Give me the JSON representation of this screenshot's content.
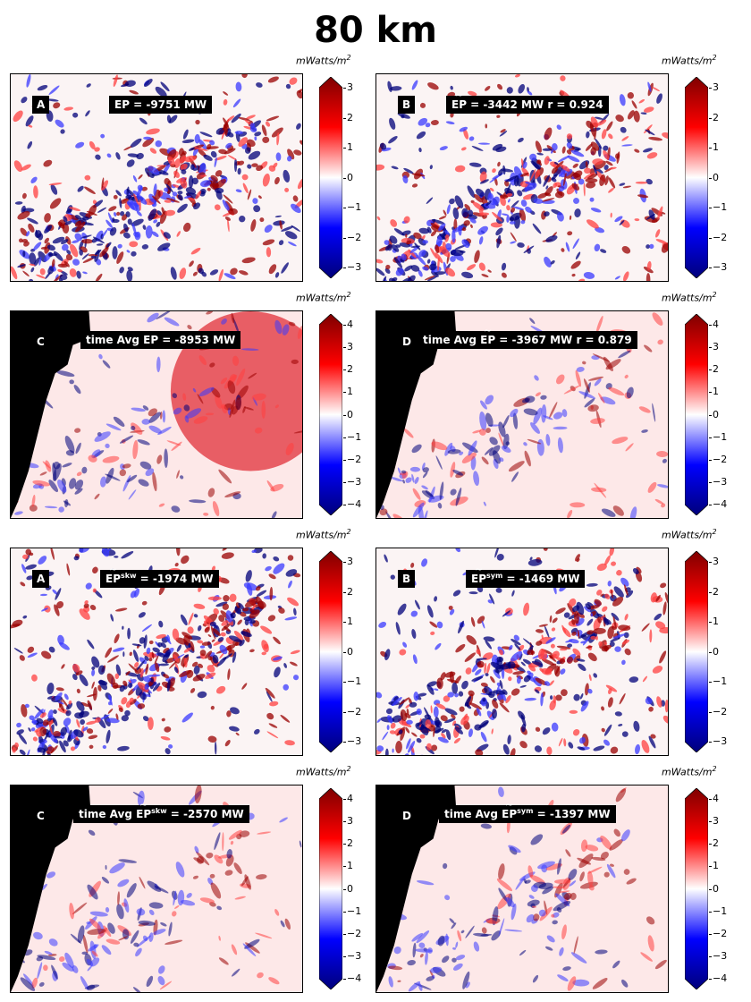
{
  "title": "80 km",
  "colorbar_unit": "mWatts/m",
  "colorbar_unit_sup": "2",
  "colors": {
    "negative": "#00007a",
    "zero": "#ffffff",
    "positive": "#7f0000",
    "land": "#000000"
  },
  "chart_data": [
    {
      "type": "heatmap",
      "panel": "A",
      "label": "EP = -9751 MW",
      "stat_parts": [
        "EP = -9751 MW"
      ],
      "colorbar_ticks": [
        3,
        2,
        1,
        0,
        -1,
        -2,
        -3
      ],
      "vmin": -3,
      "vmax": 3,
      "has_land": false
    },
    {
      "type": "heatmap",
      "panel": "B",
      "label": "EP = -3442 MW r = 0.924",
      "stat_parts": [
        "EP",
        " = -3442 MW r = 0.924"
      ],
      "tilde": true,
      "colorbar_ticks": [
        3,
        2,
        1,
        0,
        -1,
        -2,
        -3
      ],
      "vmin": -3,
      "vmax": 3,
      "has_land": false
    },
    {
      "type": "heatmap",
      "panel": "C",
      "label": "time Avg EP = -8953 MW",
      "stat_parts": [
        "time Avg EP = -8953 MW"
      ],
      "colorbar_ticks": [
        4,
        3,
        2,
        1,
        0,
        -1,
        -2,
        -3,
        -4
      ],
      "vmin": -4,
      "vmax": 4,
      "has_land": true
    },
    {
      "type": "heatmap",
      "panel": "D",
      "label": "time Avg EP = -3967 MW r = 0.879",
      "stat_parts": [
        "time Avg ",
        "EP",
        " = -3967 MW r = 0.879"
      ],
      "tilde": true,
      "colorbar_ticks": [
        4,
        3,
        2,
        1,
        0,
        -1,
        -2,
        -3,
        -4
      ],
      "vmin": -4,
      "vmax": 4,
      "has_land": true
    },
    {
      "type": "heatmap",
      "panel": "A",
      "label": "EP skw = -1974 MW",
      "stat_parts": [
        "EP",
        "skw",
        " = -1974 MW"
      ],
      "tilde": true,
      "colorbar_ticks": [
        3,
        2,
        1,
        0,
        -1,
        -2,
        -3
      ],
      "vmin": -3,
      "vmax": 3,
      "has_land": false
    },
    {
      "type": "heatmap",
      "panel": "B",
      "label": "EP sym = -1469 MW",
      "stat_parts": [
        "EP",
        "sym",
        " = -1469 MW"
      ],
      "tilde": true,
      "colorbar_ticks": [
        3,
        2,
        1,
        0,
        -1,
        -2,
        -3
      ],
      "vmin": -3,
      "vmax": 3,
      "has_land": false
    },
    {
      "type": "heatmap",
      "panel": "C",
      "label": "time Avg EP skw = -2570 MW",
      "stat_parts": [
        "time Avg ",
        "EP",
        "skw",
        " = -2570 MW"
      ],
      "tilde": true,
      "colorbar_ticks": [
        4,
        3,
        2,
        1,
        0,
        -1,
        -2,
        -3,
        -4
      ],
      "vmin": -4,
      "vmax": 4,
      "has_land": true
    },
    {
      "type": "heatmap",
      "panel": "D",
      "label": "time Avg EP sym = -1397 MW",
      "stat_parts": [
        "time Avg ",
        "EP",
        "sym",
        " = -1397 MW"
      ],
      "tilde": true,
      "colorbar_ticks": [
        4,
        3,
        2,
        1,
        0,
        -1,
        -2,
        -3,
        -4
      ],
      "vmin": -4,
      "vmax": 4,
      "has_land": true
    }
  ]
}
